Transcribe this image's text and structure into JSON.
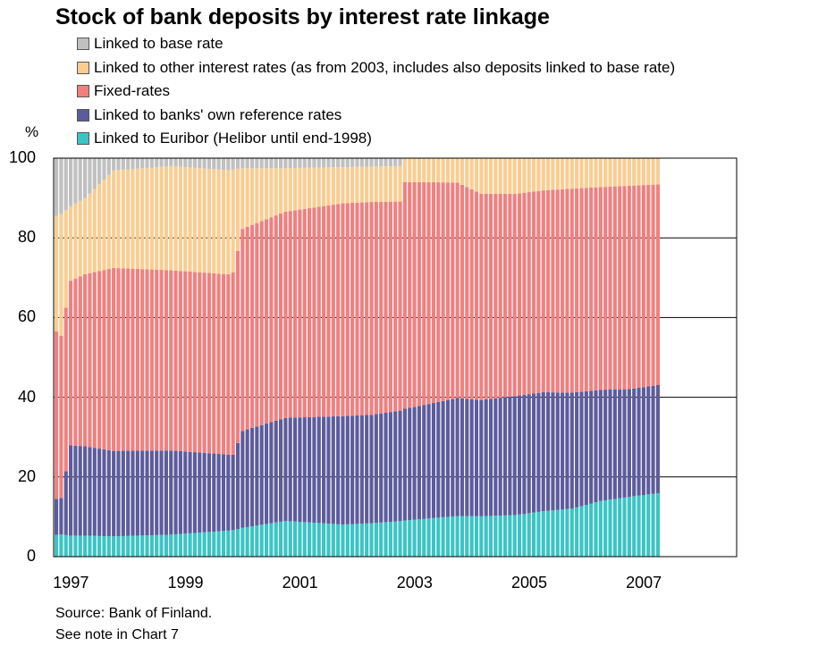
{
  "chart_data": {
    "type": "bar",
    "stacked": true,
    "title": "Stock of bank deposits by interest rate linkage",
    "ylabel": "%",
    "ylim": [
      0,
      100
    ],
    "yticks": [
      "0",
      "20",
      "40",
      "60",
      "80",
      "100"
    ],
    "xticks": [
      "1997",
      "1999",
      "2001",
      "2003",
      "2005",
      "2007"
    ],
    "x_start": "1996-12",
    "x_end": "2007-06",
    "frequency": "monthly",
    "grid": "horizontal",
    "legend_position": "top",
    "series": [
      {
        "name": "Linked to base rate",
        "color": "#c0c0c0",
        "anchors": [
          [
            0,
            14.5
          ],
          [
            6,
            10
          ],
          [
            12,
            3
          ],
          [
            24,
            2
          ],
          [
            36,
            3
          ],
          [
            39,
            2.5
          ],
          [
            48,
            2.5
          ],
          [
            72,
            2
          ],
          [
            73,
            0
          ],
          [
            127,
            0
          ]
        ]
      },
      {
        "name": "Linked to other interest rates (as from 2003, includes also deposits linked to base rate)",
        "color": "#f9cd92",
        "anchors": [
          [
            0,
            29
          ],
          [
            1,
            30
          ],
          [
            3,
            19
          ],
          [
            6,
            19
          ],
          [
            12,
            24
          ],
          [
            18,
            25
          ],
          [
            24,
            26
          ],
          [
            30,
            26
          ],
          [
            37,
            26
          ],
          [
            39,
            15
          ],
          [
            48,
            11
          ],
          [
            60,
            9
          ],
          [
            72,
            9
          ],
          [
            73,
            6
          ],
          [
            84,
            6
          ],
          [
            89,
            9
          ],
          [
            96,
            9
          ],
          [
            102,
            8
          ],
          [
            127,
            6.5
          ]
        ]
      },
      {
        "name": "Fixed-rates",
        "color": "#f08080",
        "anchors": [
          [
            0,
            42
          ],
          [
            1,
            40
          ],
          [
            3,
            42
          ],
          [
            12,
            45
          ],
          [
            24,
            45
          ],
          [
            36,
            45
          ],
          [
            37,
            46
          ],
          [
            39,
            50
          ],
          [
            48,
            52
          ],
          [
            60,
            53
          ],
          [
            66,
            54
          ],
          [
            72,
            53
          ],
          [
            73,
            57
          ],
          [
            84,
            53
          ],
          [
            90,
            52
          ],
          [
            96,
            51
          ],
          [
            102,
            50
          ],
          [
            108,
            51
          ],
          [
            114,
            51
          ],
          [
            120,
            51
          ],
          [
            127,
            50
          ]
        ]
      },
      {
        "name": "Linked to banks' own reference rates",
        "color": "#5c5c9c",
        "anchors": [
          [
            0,
            9
          ],
          [
            1,
            9
          ],
          [
            3,
            23
          ],
          [
            12,
            21
          ],
          [
            24,
            21
          ],
          [
            36,
            19
          ],
          [
            37,
            19
          ],
          [
            39,
            24
          ],
          [
            48,
            26
          ],
          [
            60,
            27
          ],
          [
            72,
            28
          ],
          [
            84,
            29
          ],
          [
            96,
            30
          ],
          [
            108,
            29
          ],
          [
            120,
            27
          ],
          [
            127,
            27
          ]
        ]
      },
      {
        "name": "Linked to Euribor (Helibor until end-1998)",
        "color": "#3cc4c4",
        "anchors": [
          [
            0,
            5.5
          ],
          [
            12,
            5
          ],
          [
            24,
            5.5
          ],
          [
            36,
            6.5
          ],
          [
            48,
            9
          ],
          [
            60,
            8
          ],
          [
            72,
            9
          ],
          [
            84,
            10
          ],
          [
            96,
            10.5
          ],
          [
            108,
            12
          ],
          [
            114,
            14
          ],
          [
            120,
            15
          ],
          [
            127,
            16
          ]
        ]
      }
    ]
  },
  "footer": {
    "source": "Source: Bank of Finland.",
    "note": "See note in Chart 7"
  }
}
